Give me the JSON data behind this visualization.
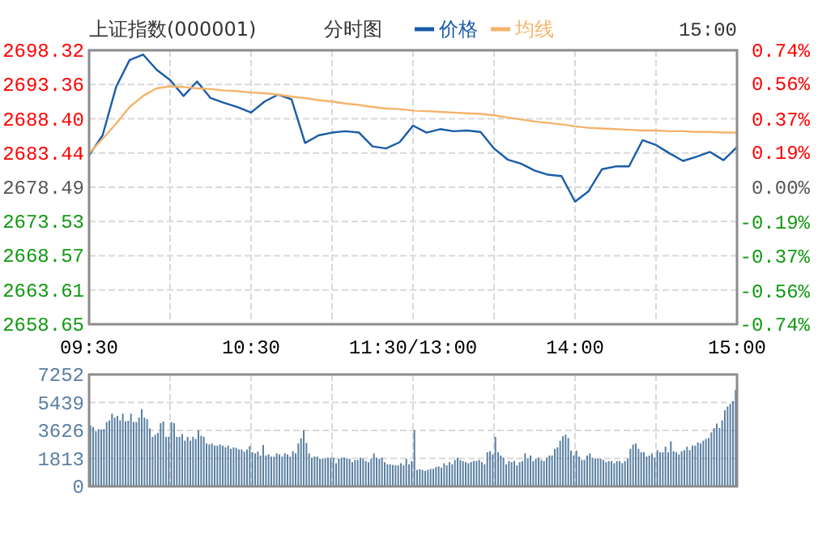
{
  "chart_data": [
    {
      "type": "line",
      "title": "上证指数(000001)",
      "subtitle": "分时图",
      "annotations": [
        "15:00"
      ],
      "legend": "top",
      "grid": true,
      "marker": "none",
      "line_style": "solid",
      "categories": [
        "09:30",
        null,
        null,
        null,
        null,
        null,
        null,
        null,
        null,
        null,
        null,
        null,
        "10:30",
        null,
        null,
        null,
        null,
        null,
        null,
        null,
        null,
        null,
        null,
        null,
        "11:30/13:00",
        null,
        null,
        null,
        null,
        null,
        null,
        null,
        null,
        null,
        null,
        null,
        "14:00",
        null,
        null,
        null,
        null,
        null,
        null,
        null,
        null,
        null,
        null,
        null,
        "15:00"
      ],
      "ylim": [
        2658.65,
        2698.32
      ],
      "yticks": [
        2658.65,
        2663.61,
        2668.57,
        2673.53,
        2678.49,
        2683.44,
        {
          "value": 2688.4,
          "label": "2688.40"
        },
        2693.36,
        2698.32
      ],
      "y2lim": [
        -0.74,
        0.74
      ],
      "y2ticks": [
        {
          "value": -0.74,
          "label": "-0.74%"
        },
        {
          "value": -0.56,
          "label": "-0.56%"
        },
        {
          "value": -0.37,
          "label": "-0.37%"
        },
        {
          "value": -0.19,
          "label": "-0.19%"
        },
        {
          "value": 0,
          "label": "0.00%"
        },
        {
          "value": 0.19,
          "label": "0.19%"
        },
        {
          "value": 0.37,
          "label": "0.37%"
        },
        {
          "value": 0.56,
          "label": "0.56%"
        },
        {
          "value": 0.74,
          "label": "0.74%"
        }
      ],
      "series": [
        {
          "name": "价格",
          "color": "#1a5ca8",
          "values": [
            2683.1,
            2686.0,
            2693.0,
            2696.9,
            2697.7,
            2695.5,
            2694.0,
            2691.7,
            2693.8,
            2691.4,
            2690.7,
            2690.1,
            2689.3,
            2690.9,
            2691.9,
            2691.2,
            2684.9,
            2686.0,
            2686.4,
            2686.6,
            2686.4,
            2684.4,
            2684.1,
            2685.0,
            2687.4,
            2686.4,
            2686.9,
            2686.6,
            2686.7,
            2686.5,
            2684.1,
            2682.5,
            2681.9,
            2680.9,
            2680.3,
            2680.1,
            2676.4,
            2677.9,
            2681.1,
            2681.5,
            2681.5,
            2685.3,
            2684.6,
            2683.4,
            2682.3,
            2682.9,
            2683.6,
            2682.4,
            2684.3
          ]
        },
        {
          "name": "均线",
          "color": "#f5b36b",
          "values": [
            2683.4,
            2685.5,
            2687.7,
            2690.1,
            2691.7,
            2692.8,
            2693.1,
            2693.0,
            2692.8,
            2692.7,
            2692.5,
            2692.4,
            2692.2,
            2692.1,
            2691.9,
            2691.6,
            2691.4,
            2691.1,
            2690.9,
            2690.6,
            2690.4,
            2690.1,
            2689.9,
            2689.8,
            2689.6,
            2689.5,
            2689.4,
            2689.3,
            2689.2,
            2689.1,
            2688.9,
            2688.6,
            2688.3,
            2688.0,
            2687.8,
            2687.6,
            2687.3,
            2687.1,
            2687.0,
            2686.9,
            2686.8,
            2686.7,
            2686.7,
            2686.6,
            2686.6,
            2686.5,
            2686.5,
            2686.4,
            2686.4
          ]
        }
      ]
    },
    {
      "type": "bar",
      "grid": true,
      "tick_labels": "y",
      "categories": [
        null,
        null,
        null,
        null,
        null,
        null,
        null,
        null,
        null,
        null,
        null,
        null,
        null,
        null,
        null,
        null,
        null,
        null,
        null,
        null,
        null,
        null,
        null,
        null,
        null,
        null,
        null,
        null,
        null,
        null,
        null,
        null,
        null,
        null,
        null,
        null,
        null,
        null,
        null,
        null,
        null,
        null,
        null,
        null,
        null,
        null,
        null,
        null,
        null,
        null,
        null,
        null,
        null,
        null,
        null,
        null,
        null,
        null,
        null,
        null,
        null,
        null,
        null,
        null,
        null,
        null,
        null,
        null,
        null,
        null,
        null,
        null,
        null,
        null,
        null,
        null,
        null,
        null,
        null,
        null,
        null,
        null,
        null,
        null,
        null,
        null,
        null,
        null,
        null,
        null,
        null,
        null,
        null,
        null,
        null,
        null,
        null,
        null,
        null,
        null,
        null,
        null,
        null,
        null,
        null,
        null,
        null,
        null,
        null,
        null,
        null,
        null,
        null,
        null,
        null,
        null,
        null,
        null,
        null,
        null,
        null,
        null,
        null,
        null,
        null,
        null,
        null,
        null,
        null,
        null,
        null,
        null,
        null,
        null,
        null,
        null,
        null,
        null,
        null,
        null,
        null,
        null,
        null,
        null,
        null,
        null,
        null,
        null,
        null,
        null,
        null,
        null,
        null,
        null,
        null,
        null,
        null,
        null,
        null,
        null,
        null,
        null,
        null,
        null,
        null,
        null,
        null,
        null,
        null,
        null,
        null,
        null,
        null,
        null,
        null,
        null,
        null,
        null,
        null,
        null,
        null,
        null,
        null,
        null,
        null,
        null,
        null,
        null,
        null,
        null,
        null,
        null,
        null,
        null,
        null,
        null,
        null,
        null,
        null,
        null,
        null,
        null,
        null,
        null,
        null,
        null,
        null,
        null,
        null,
        null,
        null,
        null,
        null,
        null,
        null,
        null,
        null,
        null,
        null,
        null,
        null,
        null,
        null,
        null,
        null,
        null,
        null,
        null,
        null,
        null,
        null,
        null,
        null,
        null,
        null,
        null,
        null,
        null,
        null,
        null
      ],
      "ylim": [
        0,
        7252
      ],
      "yticks": [
        0,
        1813,
        3626,
        5439,
        7252
      ],
      "series": [
        {
          "color": "#5b80a3",
          "values": [
            3960,
            3850,
            3570,
            3710,
            3680,
            3710,
            4170,
            4280,
            4710,
            4460,
            4570,
            4280,
            4710,
            4210,
            4250,
            4710,
            4170,
            4170,
            4460,
            5000,
            4460,
            4350,
            3750,
            3210,
            3350,
            3460,
            4100,
            4210,
            3210,
            3210,
            4170,
            4100,
            3210,
            3210,
            3390,
            2960,
            3210,
            2960,
            3210,
            3070,
            3640,
            3280,
            3210,
            2780,
            2710,
            2780,
            2640,
            2640,
            2710,
            2640,
            2530,
            2640,
            2430,
            2530,
            2490,
            2390,
            2390,
            2250,
            2390,
            2610,
            2210,
            2140,
            2250,
            2000,
            2680,
            2000,
            2070,
            1930,
            1930,
            2140,
            2070,
            1930,
            2140,
            2070,
            1930,
            2280,
            2140,
            2780,
            3110,
            3640,
            2820,
            2140,
            1860,
            1930,
            1930,
            1790,
            1790,
            1790,
            1860,
            1860,
            1860,
            1500,
            1790,
            1860,
            1860,
            1790,
            1790,
            1570,
            1710,
            1710,
            1860,
            1790,
            1640,
            1570,
            1790,
            2140,
            1860,
            1790,
            1860,
            1570,
            1430,
            1430,
            1390,
            1360,
            1360,
            1500,
            1360,
            1790,
            1430,
            1640,
            3640,
            1070,
            1110,
            1070,
            1000,
            1070,
            1140,
            1140,
            1250,
            1290,
            1210,
            1500,
            1360,
            1570,
            1430,
            1710,
            1860,
            1710,
            1640,
            1570,
            1500,
            1570,
            1640,
            1640,
            1710,
            1570,
            1430,
            2210,
            2280,
            2070,
            3210,
            2210,
            2000,
            1860,
            1430,
            1640,
            1570,
            1640,
            1360,
            1570,
            1640,
            2140,
            1790,
            2000,
            1640,
            1790,
            1860,
            1710,
            1640,
            1860,
            2000,
            2000,
            2430,
            2530,
            2960,
            3250,
            3350,
            3140,
            2320,
            2000,
            2320,
            1930,
            1710,
            1710,
            2000,
            2140,
            1860,
            1790,
            1790,
            1790,
            1710,
            1570,
            1640,
            1640,
            1500,
            1640,
            1640,
            1500,
            1640,
            1790,
            2430,
            2710,
            2780,
            2430,
            2210,
            2210,
            1930,
            2000,
            2140,
            1860,
            2350,
            2210,
            2210,
            2570,
            2210,
            2920,
            2280,
            2210,
            2070,
            2280,
            2350,
            2570,
            2350,
            2640,
            2640,
            2850,
            2780,
            2960,
            3070,
            3140,
            3500,
            3780,
            4070,
            3780,
            4280,
            4930,
            5180,
            5350,
            5530,
            6250
          ]
        }
      ]
    }
  ]
}
